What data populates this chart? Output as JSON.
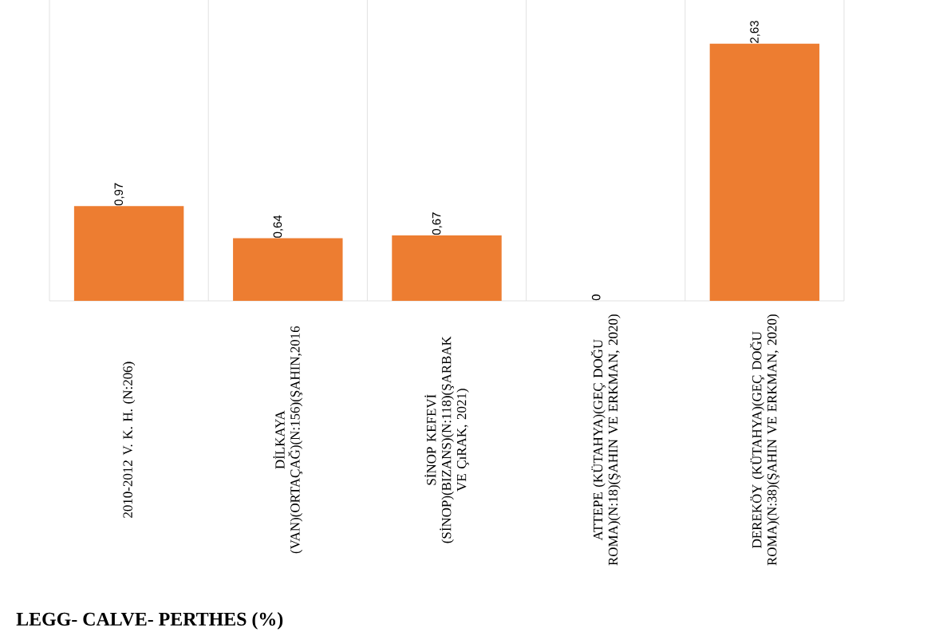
{
  "chart_data": {
    "type": "bar",
    "title": "LEGG- CALVE- PERTHES (%)",
    "categories": [
      "2010-2012 V. K. H. (N:206)",
      "DİLKAYA (VAN)(ORTAÇAĞ)(N:156)(ŞAHIN,2016",
      "SİNOP KEFEVİ (SİNOP)(BIZANS)(N:118)(ŞARBAK VE ÇıRAK, 2021)",
      "ATTEPE (KÜTAHYA)(GEÇ DOĞU ROMA)(N:18)(ŞAHIN VE ERKMAN, 2020)",
      "DEREKÖY (KÜTAHYA)(GEÇ DOĞU ROMA)(N:38)(ŞAHIN VE ERKMAN, 2020)"
    ],
    "values": [
      0.97,
      0.64,
      0.67,
      0,
      2.63
    ],
    "value_labels": [
      "0,97",
      "0,64",
      "0,67",
      "0",
      "2,63"
    ],
    "color": "#ed7d31",
    "grid": "x"
  }
}
